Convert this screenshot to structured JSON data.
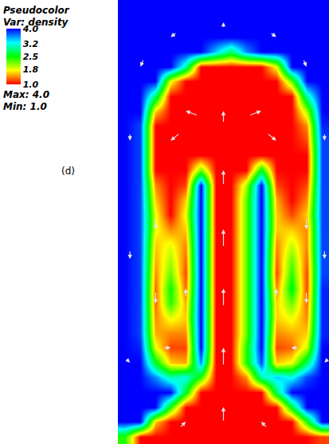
{
  "chart_data": {
    "type": "heatmap",
    "title": "Pseudocolor",
    "subtitle": "Var: density",
    "annotations": [
      "(d)"
    ],
    "max": {
      "value": 4,
      "label": "Max: 4.0"
    },
    "min": {
      "value": 1,
      "label": "Min: 1.0"
    },
    "colorbar": {
      "ticks": [
        {
          "value": 4,
          "label": "4.0"
        },
        {
          "value": 3.2,
          "label": "3.2"
        },
        {
          "value": 2.5,
          "label": "2.5"
        },
        {
          "value": 1.8,
          "label": "1.8"
        },
        {
          "value": 1,
          "label": "1.0"
        }
      ]
    },
    "colors": [
      "#ff0000",
      "#ffff00",
      "#00ff00",
      "#00ffff",
      "#0000ff"
    ],
    "tick_labels": false,
    "grid": false,
    "xlim": [
      -0.5,
      13.5
    ],
    "ylim": [
      -0.5,
      29.5
    ],
    "x": [
      0,
      1,
      2,
      3,
      4,
      5,
      6,
      7,
      8,
      9,
      10,
      11,
      12,
      13
    ],
    "y": [
      0,
      1,
      2,
      3,
      4,
      5,
      6,
      7,
      8,
      9,
      10,
      11,
      12,
      13,
      14,
      15,
      16,
      17,
      18,
      19,
      20,
      21,
      22,
      23,
      24,
      25,
      26,
      27,
      28,
      29
    ],
    "z": [
      [
        2.4,
        1,
        1,
        1,
        1,
        1,
        1,
        1,
        1,
        1,
        1,
        1,
        1,
        1.2
      ],
      [
        4,
        4,
        1.6,
        1,
        1,
        1,
        1,
        1,
        1,
        1,
        1,
        1,
        2.4,
        4
      ],
      [
        4,
        4,
        4,
        2.4,
        1,
        1,
        1,
        1,
        1,
        1,
        1,
        2.6,
        4,
        4
      ],
      [
        4,
        4,
        4,
        4,
        2.6,
        1,
        1,
        1,
        1,
        1,
        2.8,
        4,
        4,
        4
      ],
      [
        4,
        4,
        3.6,
        3.0,
        3.2,
        2.4,
        1,
        1,
        1.4,
        3.0,
        3.4,
        3.2,
        3.8,
        4
      ],
      [
        4,
        4,
        2.6,
        1.6,
        1.5,
        3.6,
        1,
        1,
        2.4,
        3.8,
        1.6,
        1.8,
        2.8,
        4
      ],
      [
        4,
        3.9,
        1.8,
        1.2,
        1.2,
        4,
        1,
        1,
        2.4,
        4,
        1.2,
        1.3,
        1.9,
        4
      ],
      [
        4,
        3.8,
        1.5,
        1.4,
        1.4,
        4,
        1,
        1,
        2.2,
        4,
        1.4,
        1.5,
        1.6,
        3.9
      ],
      [
        4,
        3.8,
        1.4,
        1.8,
        1.6,
        4,
        1,
        1,
        2.2,
        4,
        1.6,
        1.8,
        1.4,
        3.9
      ],
      [
        4,
        3.8,
        1.3,
        2.4,
        1.5,
        4,
        1,
        1,
        2.2,
        4,
        1.6,
        2.2,
        1.3,
        3.9
      ],
      [
        4,
        3.8,
        1.3,
        2.5,
        1.3,
        4,
        1,
        1,
        2.2,
        4,
        1.4,
        2.6,
        1.2,
        3.9
      ],
      [
        4,
        3.8,
        1.4,
        2.2,
        1.2,
        4,
        1,
        1,
        2.2,
        4,
        1.2,
        2.4,
        1.2,
        3.8
      ],
      [
        4,
        3.8,
        1.5,
        2.0,
        1.3,
        4,
        1,
        1,
        2.2,
        4,
        1.3,
        2.2,
        1.3,
        3.8
      ],
      [
        4,
        3.8,
        1.6,
        1.8,
        1.4,
        4,
        1,
        1,
        2.2,
        4,
        1.4,
        1.9,
        1.4,
        3.8
      ],
      [
        4,
        3.8,
        1.8,
        1.4,
        1.6,
        4,
        1,
        1,
        2.2,
        4,
        1.6,
        1.6,
        1.4,
        3.8
      ],
      [
        4,
        3.8,
        1.8,
        1,
        1.8,
        4,
        1,
        1,
        2.2,
        4,
        1.6,
        1.2,
        1.6,
        3.8
      ],
      [
        4,
        3.8,
        1.6,
        1,
        1.6,
        4,
        1,
        1,
        2.2,
        4,
        1.5,
        1,
        1.4,
        3.8
      ],
      [
        4,
        3.8,
        1.4,
        1,
        1.2,
        4,
        1,
        1,
        2.0,
        4,
        1.2,
        1,
        1.2,
        3.8
      ],
      [
        4,
        3.8,
        1,
        1,
        1,
        2.2,
        1,
        1,
        1,
        2.6,
        1,
        1,
        1,
        3.8
      ],
      [
        4,
        3.8,
        1,
        1,
        1,
        1,
        1,
        1,
        1,
        1,
        1,
        1,
        1,
        3.8
      ],
      [
        4,
        3.8,
        1,
        1,
        1,
        1,
        1,
        1,
        1,
        1,
        1,
        1,
        1.2,
        3.8
      ],
      [
        4,
        3.8,
        1,
        1,
        1,
        1,
        1,
        1,
        1,
        1,
        1,
        1,
        1.4,
        3.9
      ],
      [
        4,
        4,
        1.6,
        1,
        1,
        1,
        1,
        1,
        1,
        1,
        1,
        1,
        2.0,
        4
      ],
      [
        4,
        4,
        2.8,
        1,
        1,
        1,
        1,
        1,
        1,
        1,
        1,
        1,
        3.0,
        4
      ],
      [
        4,
        4,
        4,
        1.8,
        1,
        1,
        1,
        1,
        1,
        1,
        1,
        2.2,
        4,
        4
      ],
      [
        4,
        4,
        4,
        4,
        3.0,
        1,
        1,
        1,
        1,
        1,
        1.8,
        4,
        4,
        4
      ],
      [
        4,
        4,
        4,
        4,
        4,
        4,
        3.4,
        2.8,
        3.6,
        4,
        4,
        4,
        4,
        4
      ],
      [
        4,
        4,
        4,
        4,
        4,
        4,
        4,
        4,
        4,
        4,
        4,
        4,
        4,
        4
      ],
      [
        4,
        4,
        4,
        4,
        4,
        4,
        4,
        4,
        4,
        4,
        4,
        4,
        4,
        4
      ],
      [
        4,
        4,
        4,
        4,
        4,
        4,
        4,
        4,
        4,
        4,
        4,
        4,
        4,
        4
      ]
    ],
    "vectors": {
      "x": [
        6.5,
        6.5,
        6.5,
        6.5,
        6.5,
        4,
        9,
        3,
        10,
        2,
        2,
        4,
        3,
        12,
        12,
        10,
        11,
        0.3,
        0.3,
        0.3,
        13.2,
        13.2,
        13.2,
        3,
        6.5,
        10,
        1,
        12,
        4,
        9,
        6.5
      ],
      "y": [
        6,
        10,
        14,
        18,
        22,
        22,
        22,
        20,
        20,
        14,
        9,
        10,
        6,
        14,
        9,
        10,
        6,
        20,
        12,
        5,
        20,
        12,
        5,
        27,
        28,
        27,
        25,
        25,
        1,
        1,
        2
      ],
      "u": [
        0,
        0,
        0,
        0,
        0,
        -0.8,
        0.8,
        -0.6,
        0.6,
        0,
        0,
        0,
        0.5,
        0,
        0,
        0,
        -0.5,
        0,
        0,
        0.3,
        0,
        0,
        -0.3,
        -0.4,
        0,
        0.4,
        -0.2,
        0.2,
        0.4,
        -0.4,
        0
      ],
      "v": [
        1.2,
        1.2,
        1.2,
        1.0,
        0.8,
        0.3,
        0.3,
        -0.5,
        -0.5,
        -0.8,
        -0.8,
        0.6,
        0,
        -0.8,
        -0.8,
        0.6,
        0,
        -0.5,
        -0.6,
        -0.3,
        -0.5,
        -0.6,
        -0.3,
        -0.3,
        0.4,
        -0.3,
        -0.5,
        -0.5,
        0.4,
        0.4,
        1.0
      ]
    }
  }
}
